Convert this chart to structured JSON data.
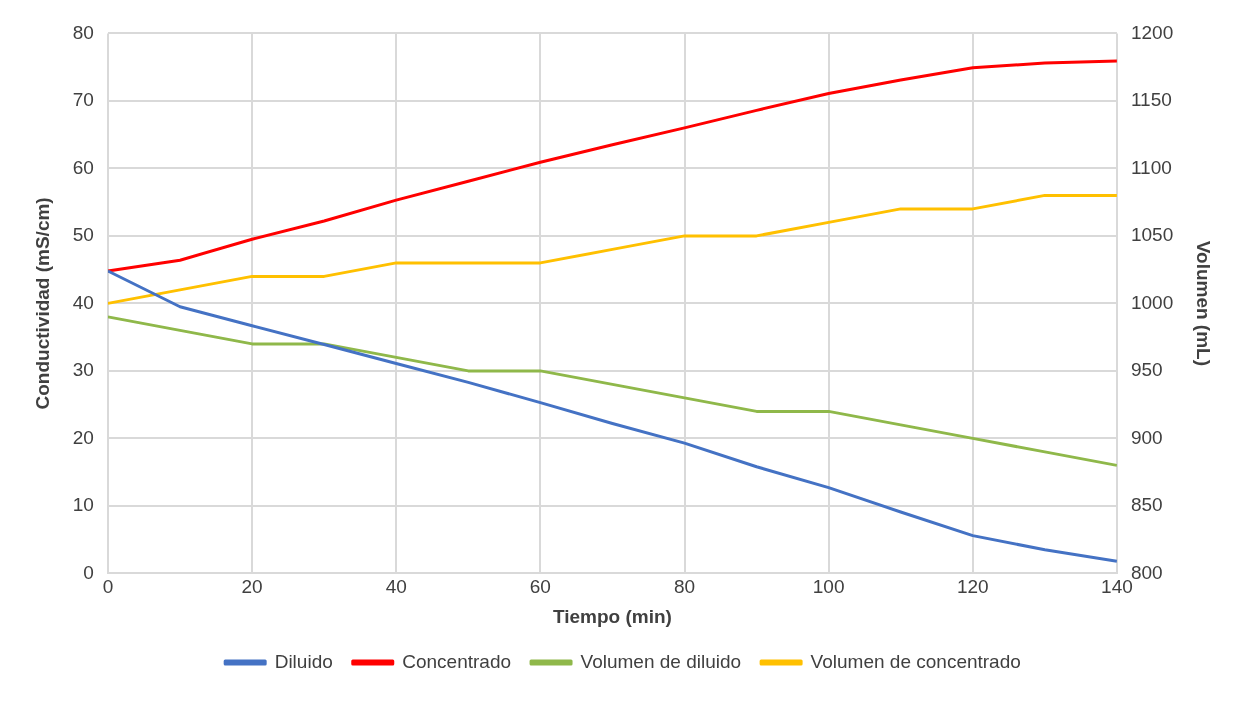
{
  "chart_data": {
    "type": "line",
    "xlabel": "Tiempo (min)",
    "ylabel": "Conductividad (mS/cm)",
    "y2label": "Volumen (mL)",
    "x": [
      0,
      10,
      20,
      30,
      40,
      50,
      60,
      70,
      80,
      90,
      100,
      110,
      120,
      130,
      140
    ],
    "xlim": [
      0,
      140
    ],
    "xticks": [
      0,
      20,
      40,
      60,
      80,
      100,
      120,
      140
    ],
    "ylim": [
      0,
      80
    ],
    "yticks": [
      0,
      10,
      20,
      30,
      40,
      50,
      60,
      70,
      80
    ],
    "y2lim": [
      800,
      1200
    ],
    "y2ticks": [
      800,
      850,
      900,
      950,
      1000,
      1050,
      1100,
      1150,
      1200
    ],
    "grid": true,
    "legend": "bottom",
    "marker": "none",
    "line_style": "solid",
    "series": [
      {
        "name": "Diluido",
        "color": "#4472c4",
        "values": [
          44.8,
          39.5,
          36.7,
          33.9,
          31.1,
          28.3,
          25.3,
          22.2,
          19.3,
          15.8,
          12.7,
          9.1,
          5.6,
          3.5,
          1.8
        ]
      },
      {
        "name": "Concentrado",
        "color": "#ff0000",
        "values": [
          44.8,
          46.4,
          49.5,
          52.2,
          55.3,
          58.1,
          60.9,
          63.5,
          66.0,
          68.6,
          71.1,
          73.1,
          74.9,
          75.6,
          75.9
        ]
      },
      {
        "name": "Volumen de diluido",
        "color": "#8fb84a",
        "axis": "y2",
        "values": [
          990,
          980,
          970,
          970,
          960,
          950,
          950,
          940,
          930,
          920,
          920,
          910,
          900,
          890,
          880
        ]
      },
      {
        "name": "Volumen de concentrado",
        "color": "#ffc000",
        "axis": "y2",
        "values": [
          1000,
          1010,
          1020,
          1020,
          1030,
          1030,
          1030,
          1040,
          1050,
          1050,
          1060,
          1070,
          1070,
          1080,
          1080
        ]
      }
    ]
  }
}
